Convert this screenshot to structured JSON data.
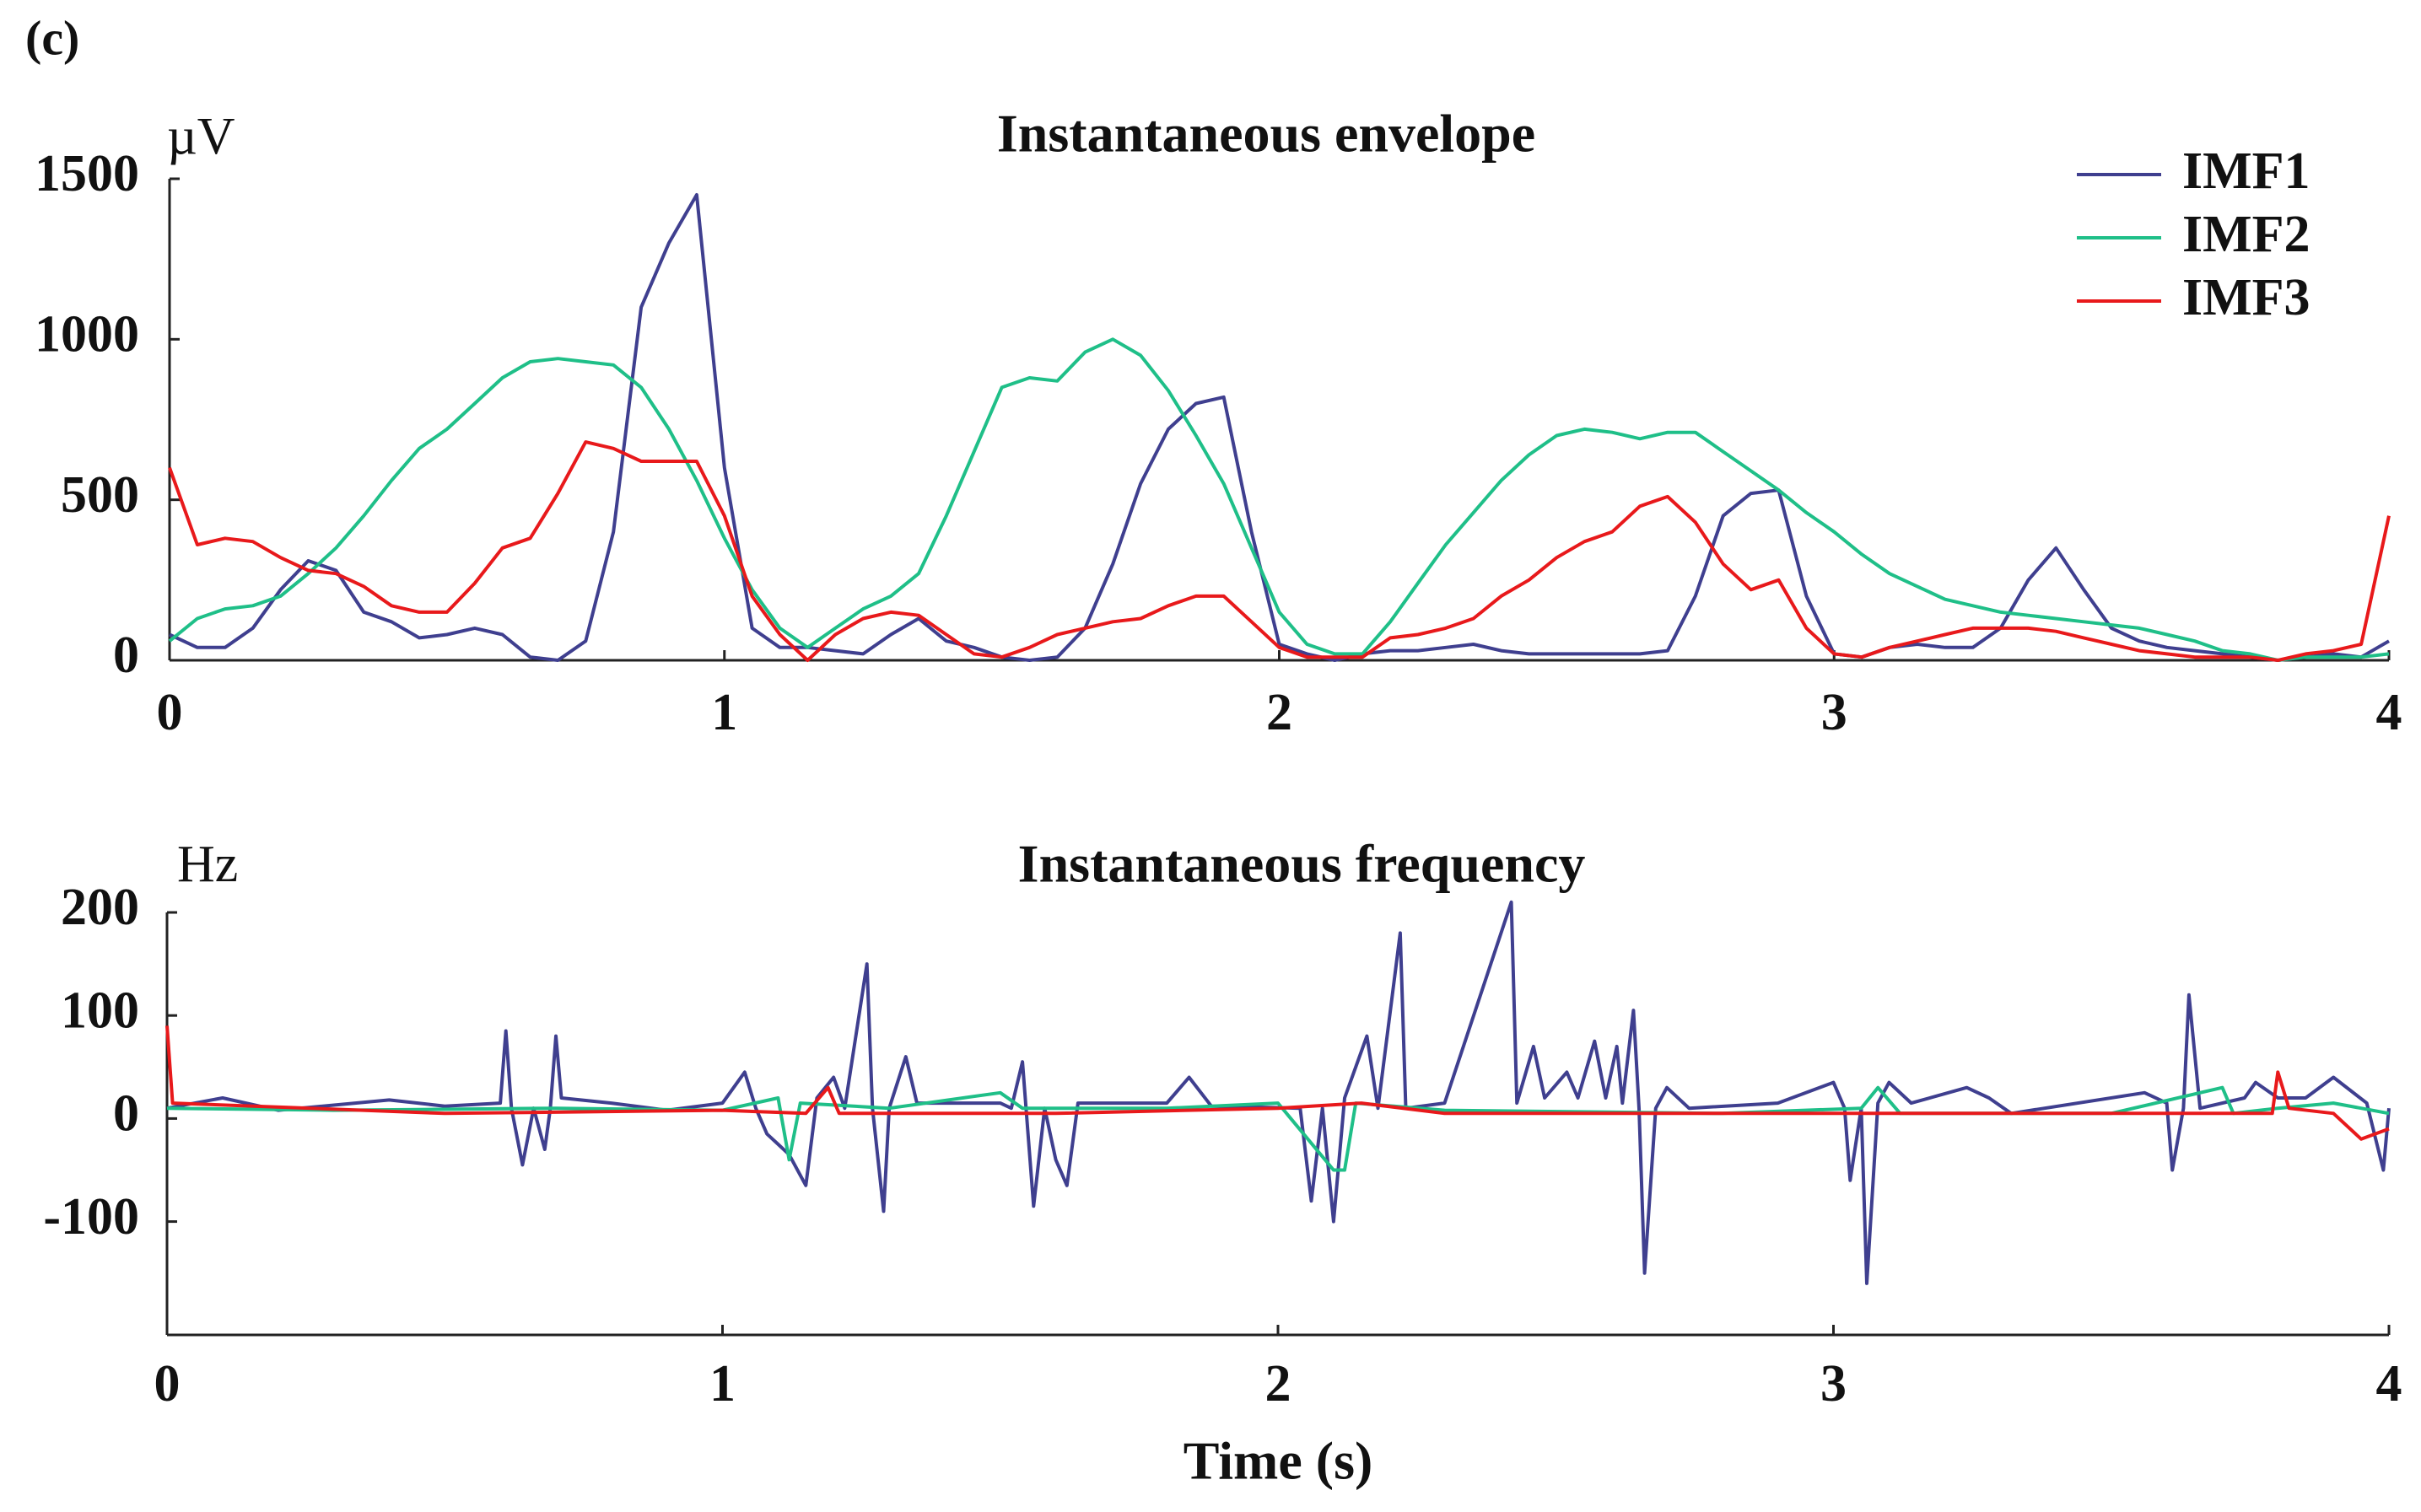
{
  "panel_label": "(c)",
  "chart_data": [
    {
      "type": "line",
      "title": "Instantaneous envelope",
      "ylabel": "µV",
      "legend": "upper right",
      "xlim": [
        0,
        4
      ],
      "xticks": [
        0,
        1,
        2,
        3,
        4
      ],
      "ylim": [
        0,
        1500
      ],
      "yticks": [
        0,
        500,
        1000,
        1500
      ],
      "x": [
        0,
        0.05,
        0.1,
        0.15,
        0.2,
        0.25,
        0.3,
        0.35,
        0.4,
        0.45,
        0.5,
        0.55,
        0.6,
        0.65,
        0.7,
        0.75,
        0.8,
        0.85,
        0.9,
        0.95,
        1,
        1.05,
        1.1,
        1.15,
        1.2,
        1.25,
        1.3,
        1.35,
        1.4,
        1.45,
        1.5,
        1.55,
        1.6,
        1.65,
        1.7,
        1.75,
        1.8,
        1.85,
        1.9,
        1.95,
        2,
        2.05,
        2.1,
        2.15,
        2.2,
        2.25,
        2.3,
        2.35,
        2.4,
        2.45,
        2.5,
        2.55,
        2.6,
        2.65,
        2.7,
        2.75,
        2.8,
        2.85,
        2.9,
        2.95,
        3,
        3.05,
        3.1,
        3.15,
        3.2,
        3.25,
        3.3,
        3.35,
        3.4,
        3.45,
        3.5,
        3.55,
        3.6,
        3.65,
        3.7,
        3.75,
        3.8,
        3.85,
        3.9,
        3.95,
        4
      ],
      "series": [
        {
          "name": "IMF1",
          "color": "#3f3f8f",
          "values": [
            80,
            40,
            40,
            100,
            220,
            310,
            280,
            150,
            120,
            70,
            80,
            100,
            80,
            10,
            0,
            60,
            400,
            1100,
            1300,
            1450,
            600,
            100,
            40,
            40,
            30,
            20,
            80,
            130,
            60,
            40,
            10,
            0,
            10,
            100,
            300,
            550,
            720,
            800,
            820,
            400,
            50,
            20,
            0,
            20,
            30,
            30,
            40,
            50,
            30,
            20,
            20,
            20,
            20,
            20,
            30,
            200,
            450,
            520,
            530,
            200,
            20,
            10,
            40,
            50,
            40,
            40,
            100,
            250,
            350,
            220,
            100,
            60,
            40,
            30,
            20,
            10,
            0,
            10,
            20,
            10,
            60
          ]
        },
        {
          "name": "IMF2",
          "color": "#1fbf88",
          "values": [
            60,
            130,
            160,
            170,
            200,
            270,
            350,
            450,
            560,
            660,
            720,
            800,
            880,
            930,
            940,
            930,
            920,
            850,
            720,
            560,
            380,
            220,
            100,
            40,
            100,
            160,
            200,
            270,
            450,
            650,
            850,
            880,
            870,
            960,
            1000,
            950,
            840,
            700,
            550,
            350,
            150,
            50,
            20,
            20,
            120,
            240,
            360,
            460,
            560,
            640,
            700,
            720,
            710,
            690,
            710,
            710,
            650,
            590,
            530,
            460,
            400,
            330,
            270,
            230,
            190,
            170,
            150,
            140,
            130,
            120,
            110,
            100,
            80,
            60,
            30,
            20,
            0,
            10,
            10,
            10,
            20
          ]
        },
        {
          "name": "IMF3",
          "color": "#e8191b",
          "values": [
            600,
            360,
            380,
            370,
            320,
            280,
            270,
            230,
            170,
            150,
            150,
            240,
            350,
            380,
            520,
            680,
            660,
            620,
            620,
            620,
            450,
            200,
            80,
            0,
            80,
            130,
            150,
            140,
            80,
            20,
            10,
            40,
            80,
            100,
            120,
            130,
            170,
            200,
            200,
            120,
            40,
            10,
            10,
            10,
            70,
            80,
            100,
            130,
            200,
            250,
            320,
            370,
            400,
            480,
            510,
            430,
            300,
            220,
            250,
            100,
            20,
            10,
            40,
            60,
            80,
            100,
            100,
            100,
            90,
            70,
            50,
            30,
            20,
            10,
            10,
            10,
            0,
            20,
            30,
            50,
            450
          ]
        }
      ]
    },
    {
      "type": "line",
      "title": "Instantaneous frequency",
      "ylabel": "Hz",
      "xlabel": "Time (s)",
      "xlim": [
        0,
        4
      ],
      "xticks": [
        0,
        1,
        2,
        3,
        4
      ],
      "ylim": [
        -210,
        200
      ],
      "yticks": [
        -100,
        0,
        100,
        200
      ],
      "series": [
        {
          "color": "#3f3f8f",
          "x": [
            0,
            0.1,
            0.2,
            0.4,
            0.5,
            0.6,
            0.61,
            0.62,
            0.64,
            0.66,
            0.68,
            0.69,
            0.7,
            0.71,
            0.8,
            0.9,
            1,
            1.04,
            1.06,
            1.08,
            1.1,
            1.12,
            1.15,
            1.17,
            1.2,
            1.22,
            1.26,
            1.27,
            1.29,
            1.3,
            1.33,
            1.35,
            1.5,
            1.52,
            1.54,
            1.56,
            1.58,
            1.6,
            1.62,
            1.64,
            1.8,
            1.84,
            1.88,
            2.04,
            2.06,
            2.08,
            2.1,
            2.12,
            2.16,
            2.18,
            2.22,
            2.23,
            2.3,
            2.42,
            2.43,
            2.46,
            2.48,
            2.52,
            2.54,
            2.57,
            2.59,
            2.61,
            2.62,
            2.64,
            2.65,
            2.66,
            2.68,
            2.7,
            2.74,
            2.9,
            3,
            3.02,
            3.03,
            3.05,
            3.06,
            3.08,
            3.1,
            3.14,
            3.24,
            3.28,
            3.32,
            3.56,
            3.6,
            3.61,
            3.63,
            3.64,
            3.66,
            3.74,
            3.76,
            3.8,
            3.85,
            3.9,
            3.96,
            3.99,
            4
          ],
          "values": [
            10,
            20,
            8,
            18,
            12,
            15,
            85,
            10,
            -45,
            10,
            -30,
            10,
            80,
            20,
            15,
            8,
            15,
            45,
            10,
            -15,
            -25,
            -35,
            -65,
            20,
            40,
            10,
            150,
            10,
            -90,
            10,
            60,
            15,
            15,
            10,
            55,
            -85,
            10,
            -40,
            -65,
            15,
            15,
            40,
            12,
            10,
            -80,
            10,
            -100,
            20,
            80,
            10,
            180,
            10,
            15,
            210,
            15,
            70,
            20,
            45,
            20,
            75,
            20,
            70,
            15,
            105,
            10,
            -150,
            10,
            30,
            10,
            15,
            35,
            10,
            -60,
            10,
            -160,
            15,
            35,
            15,
            30,
            20,
            5,
            25,
            15,
            -50,
            10,
            120,
            10,
            20,
            35,
            20,
            20,
            40,
            15,
            -50,
            10
          ]
        },
        {
          "color": "#1fbf88",
          "x": [
            0,
            0.3,
            0.7,
            1,
            1.1,
            1.12,
            1.14,
            1.3,
            1.5,
            1.54,
            1.8,
            2,
            2.1,
            2.12,
            2.14,
            2.3,
            2.8,
            3.05,
            3.08,
            3.12,
            3.5,
            3.7,
            3.72,
            3.8,
            3.9,
            4
          ],
          "values": [
            10,
            8,
            10,
            8,
            20,
            -40,
            15,
            10,
            25,
            10,
            10,
            15,
            -50,
            -50,
            15,
            8,
            5,
            10,
            30,
            5,
            5,
            30,
            5,
            10,
            15,
            5
          ]
        },
        {
          "color": "#e8191b",
          "x": [
            0,
            0.01,
            0.5,
            1,
            1.15,
            1.19,
            1.21,
            1.6,
            2,
            2.15,
            2.3,
            3,
            3.5,
            3.79,
            3.8,
            3.82,
            3.9,
            3.95,
            4
          ],
          "values": [
            90,
            15,
            5,
            8,
            5,
            30,
            5,
            5,
            10,
            15,
            5,
            5,
            5,
            5,
            45,
            10,
            5,
            -20,
            -10
          ]
        }
      ]
    }
  ]
}
